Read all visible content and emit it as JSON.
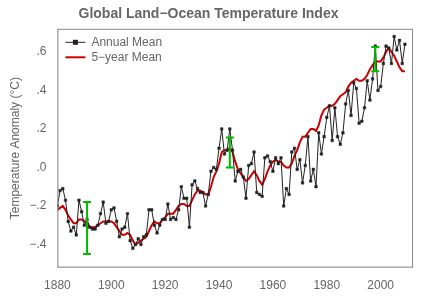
{
  "chart_data": {
    "type": "line",
    "title": "Global Land−Ocean Temperature Index",
    "ylabel": "Temperature Anomaly (°C)",
    "xlim": [
      1880,
      2012
    ],
    "ylim": [
      -0.52,
      0.72
    ],
    "xticks": [
      1880,
      1900,
      1920,
      1940,
      1960,
      1980,
      2000
    ],
    "yticks": [
      {
        "value": -0.4,
        "label": "−.4"
      },
      {
        "value": -0.2,
        "label": "−.2"
      },
      {
        "value": 0.0,
        "label": ".0"
      },
      {
        "value": 0.2,
        "label": ".2"
      },
      {
        "value": 0.4,
        "label": ".4"
      },
      {
        "value": 0.6,
        "label": ".6"
      }
    ],
    "grid": false,
    "legend": "upper left",
    "x": [
      1880,
      1881,
      1882,
      1883,
      1884,
      1885,
      1886,
      1887,
      1888,
      1889,
      1890,
      1891,
      1892,
      1893,
      1894,
      1895,
      1896,
      1897,
      1898,
      1899,
      1900,
      1901,
      1902,
      1903,
      1904,
      1905,
      1906,
      1907,
      1908,
      1909,
      1910,
      1911,
      1912,
      1913,
      1914,
      1915,
      1916,
      1917,
      1918,
      1919,
      1920,
      1921,
      1922,
      1923,
      1924,
      1925,
      1926,
      1927,
      1928,
      1929,
      1930,
      1931,
      1932,
      1933,
      1934,
      1935,
      1936,
      1937,
      1938,
      1939,
      1940,
      1941,
      1942,
      1943,
      1944,
      1945,
      1946,
      1947,
      1948,
      1949,
      1950,
      1951,
      1952,
      1953,
      1954,
      1955,
      1956,
      1957,
      1958,
      1959,
      1960,
      1961,
      1962,
      1963,
      1964,
      1965,
      1966,
      1967,
      1968,
      1969,
      1970,
      1971,
      1972,
      1973,
      1974,
      1975,
      1976,
      1977,
      1978,
      1979,
      1980,
      1981,
      1982,
      1983,
      1984,
      1985,
      1986,
      1987,
      1988,
      1989,
      1990,
      1991,
      1992,
      1993,
      1994,
      1995,
      1996,
      1997,
      1998,
      1999,
      2000,
      2001,
      2002,
      2003,
      2004,
      2005,
      2006,
      2007,
      2008,
      2009
    ],
    "series": [
      {
        "name": "Annual Mean",
        "color": "#222222",
        "marker": "square",
        "values": [
          -0.2,
          -0.12,
          -0.11,
          -0.17,
          -0.28,
          -0.33,
          -0.31,
          -0.35,
          -0.17,
          -0.23,
          -0.3,
          -0.27,
          -0.31,
          -0.32,
          -0.32,
          -0.3,
          -0.24,
          -0.18,
          -0.29,
          -0.28,
          -0.22,
          -0.21,
          -0.28,
          -0.36,
          -0.32,
          -0.31,
          -0.24,
          -0.38,
          -0.42,
          -0.4,
          -0.37,
          -0.4,
          -0.36,
          -0.35,
          -0.22,
          -0.22,
          -0.3,
          -0.34,
          -0.3,
          -0.27,
          -0.27,
          -0.19,
          -0.27,
          -0.26,
          -0.27,
          -0.22,
          -0.1,
          -0.16,
          -0.16,
          -0.31,
          -0.09,
          -0.07,
          -0.11,
          -0.13,
          -0.13,
          -0.2,
          -0.14,
          -0.02,
          -0.0,
          -0.01,
          0.1,
          0.2,
          0.07,
          0.09,
          0.2,
          0.09,
          -0.07,
          -0.02,
          -0.01,
          -0.05,
          -0.16,
          0.01,
          0.02,
          0.08,
          -0.13,
          -0.14,
          -0.15,
          0.05,
          0.06,
          0.03,
          -0.02,
          0.05,
          0.02,
          0.05,
          -0.2,
          -0.11,
          -0.14,
          0.08,
          0.1,
          -0.01,
          0.04,
          -0.08,
          0.01,
          0.16,
          -0.07,
          -0.01,
          -0.1,
          0.18,
          0.07,
          0.16,
          0.26,
          0.32,
          0.14,
          0.31,
          0.16,
          0.12,
          0.18,
          0.33,
          0.4,
          0.27,
          0.44,
          0.41,
          0.23,
          0.24,
          0.31,
          0.45,
          0.35,
          0.46,
          0.63,
          0.4,
          0.42,
          0.54,
          0.63,
          0.62,
          0.54,
          0.68,
          0.61,
          0.66,
          0.54,
          0.64
        ]
      },
      {
        "name": "5−year Mean",
        "color": "#cc0000",
        "values": [
          -0.22,
          -0.21,
          -0.2,
          -0.22,
          -0.25,
          -0.27,
          -0.29,
          -0.29,
          -0.27,
          -0.27,
          -0.28,
          -0.29,
          -0.31,
          -0.31,
          -0.31,
          -0.3,
          -0.29,
          -0.28,
          -0.28,
          -0.28,
          -0.28,
          -0.29,
          -0.31,
          -0.33,
          -0.35,
          -0.35,
          -0.34,
          -0.35,
          -0.38,
          -0.4,
          -0.39,
          -0.38,
          -0.37,
          -0.36,
          -0.33,
          -0.3,
          -0.28,
          -0.29,
          -0.29,
          -0.27,
          -0.26,
          -0.24,
          -0.24,
          -0.24,
          -0.22,
          -0.2,
          -0.19,
          -0.19,
          -0.2,
          -0.2,
          -0.17,
          -0.14,
          -0.12,
          -0.12,
          -0.13,
          -0.14,
          -0.14,
          -0.1,
          -0.05,
          -0.02,
          0.02,
          0.08,
          0.09,
          0.09,
          0.1,
          0.08,
          0.03,
          -0.01,
          -0.03,
          -0.05,
          -0.07,
          -0.06,
          -0.04,
          -0.02,
          -0.04,
          -0.07,
          -0.09,
          -0.06,
          -0.02,
          0.01,
          0.03,
          0.04,
          0.03,
          0.03,
          0.01,
          0.0,
          0.0,
          0.02,
          0.06,
          0.09,
          0.13,
          0.16,
          0.16,
          0.18,
          0.2,
          0.2,
          0.19,
          0.22,
          0.27,
          0.3,
          0.31,
          0.32,
          0.32,
          0.33,
          0.35,
          0.37,
          0.38,
          0.39,
          0.42,
          0.44,
          0.45,
          0.46,
          0.45,
          0.45,
          0.46,
          0.48,
          0.51,
          0.53,
          0.55,
          0.55,
          0.55,
          0.57,
          0.6,
          0.62,
          0.6,
          0.58,
          0.55,
          0.52,
          0.5,
          0.5
        ]
      }
    ],
    "error_bars": [
      {
        "x": 1891,
        "center": -0.27,
        "low": -0.45,
        "high": -0.18,
        "color": "#00bb00"
      },
      {
        "x": 1944,
        "center": 0.13,
        "low": 0.0,
        "high": 0.155,
        "color": "#00bb00"
      },
      {
        "x": 1998,
        "center": 0.52,
        "low": 0.5,
        "high": 0.625,
        "color": "#00bb00"
      }
    ]
  }
}
